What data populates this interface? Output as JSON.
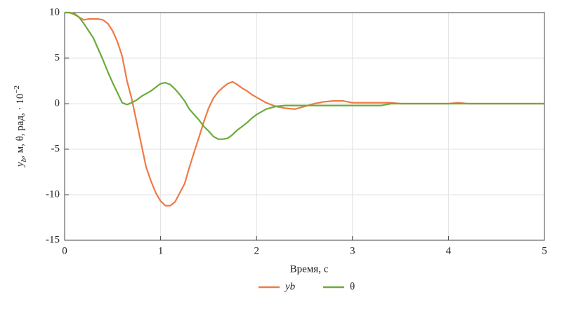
{
  "chart_data": {
    "type": "line",
    "xlabel": "Время, с",
    "ylabel": [
      "y",
      "b",
      ", м, θ, рад, · 10",
      "−2"
    ],
    "x": [
      0,
      0.05,
      0.1,
      0.15,
      0.2,
      0.25,
      0.3,
      0.35,
      0.4,
      0.45,
      0.5,
      0.55,
      0.6,
      0.65,
      0.7,
      0.75,
      0.8,
      0.85,
      0.9,
      0.95,
      1.0,
      1.05,
      1.1,
      1.15,
      1.2,
      1.25,
      1.3,
      1.35,
      1.4,
      1.45,
      1.5,
      1.55,
      1.6,
      1.65,
      1.7,
      1.75,
      1.8,
      1.85,
      1.9,
      1.95,
      2.0,
      2.05,
      2.1,
      2.2,
      2.3,
      2.4,
      2.5,
      2.6,
      2.7,
      2.8,
      2.9,
      3.0,
      3.1,
      3.2,
      3.3,
      3.4,
      3.5,
      4.0,
      4.1,
      4.2,
      5
    ],
    "series": [
      {
        "name": "yb",
        "color": "#f07a45",
        "values": [
          10,
          10,
          9.8,
          9.5,
          9.2,
          9.3,
          9.3,
          9.3,
          9.2,
          8.8,
          8,
          6.8,
          5.2,
          2.5,
          0.5,
          -2,
          -4.5,
          -7,
          -8.5,
          -9.8,
          -10.7,
          -11.2,
          -11.2,
          -10.8,
          -9.8,
          -8.8,
          -7,
          -5.3,
          -3.7,
          -2,
          -0.5,
          0.6,
          1.3,
          1.8,
          2.2,
          2.4,
          2.1,
          1.7,
          1.4,
          1.0,
          0.7,
          0.4,
          0.1,
          -0.3,
          -0.5,
          -0.6,
          -0.3,
          0,
          0.2,
          0.3,
          0.3,
          0.1,
          0.1,
          0.1,
          0.1,
          0.1,
          0,
          0,
          0.1,
          0,
          0
        ]
      },
      {
        "name": "θ",
        "color": "#6aac3a",
        "values": [
          10,
          10,
          9.9,
          9.5,
          8.8,
          8,
          7.2,
          6,
          4.8,
          3.5,
          2.3,
          1.2,
          0.1,
          -0.1,
          0.1,
          0.4,
          0.8,
          1.1,
          1.4,
          1.8,
          2.2,
          2.3,
          2.1,
          1.6,
          1.0,
          0.3,
          -0.6,
          -1.2,
          -1.8,
          -2.5,
          -3.0,
          -3.6,
          -3.9,
          -3.9,
          -3.8,
          -3.4,
          -2.9,
          -2.5,
          -2.1,
          -1.6,
          -1.2,
          -0.9,
          -0.6,
          -0.3,
          -0.2,
          -0.2,
          -0.2,
          -0.2,
          -0.2,
          -0.2,
          -0.2,
          -0.2,
          -0.2,
          -0.2,
          -0.2,
          0,
          0,
          0,
          0,
          0,
          0
        ]
      }
    ],
    "xlim": [
      0,
      5
    ],
    "xticks": [
      0,
      1,
      2,
      3,
      4,
      5
    ],
    "ylim": [
      -15,
      10
    ],
    "yticks": [
      -15,
      -10,
      -5,
      0,
      5,
      10
    ],
    "grid": true,
    "legend": "bottom"
  }
}
